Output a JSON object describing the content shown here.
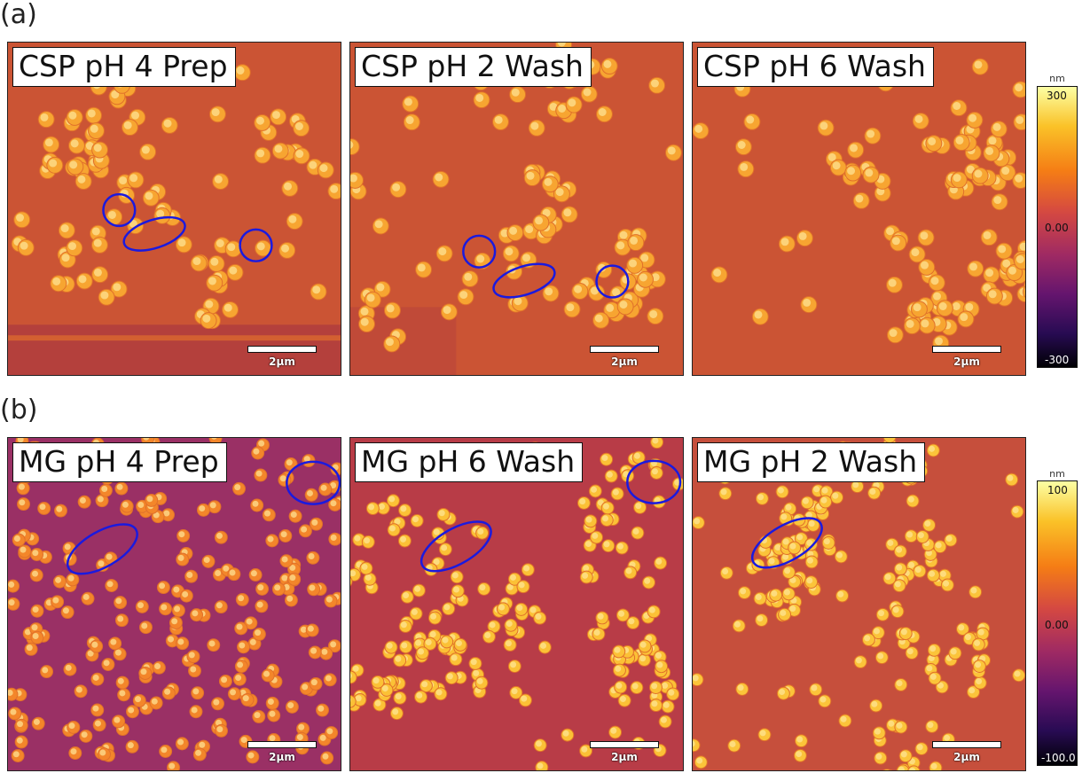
{
  "rows": [
    {
      "label": "(a)",
      "panels": [
        {
          "title": "CSP pH 4 Prep",
          "scalebar": "2μm"
        },
        {
          "title": "CSP pH 2 Wash",
          "scalebar": "2μm"
        },
        {
          "title": "CSP pH 6 Wash",
          "scalebar": "2μm"
        }
      ],
      "colorbar": {
        "unit": "nm",
        "max": "300",
        "mid": "0.00",
        "min": "-300"
      }
    },
    {
      "label": "(b)",
      "panels": [
        {
          "title": "MG pH 4 Prep",
          "scalebar": "2μm"
        },
        {
          "title": "MG pH 6 Wash",
          "scalebar": "2μm"
        },
        {
          "title": "MG pH 2 Wash",
          "scalebar": "2μm"
        }
      ],
      "colorbar": {
        "unit": "nm",
        "max": "100",
        "mid": "0.00",
        "min": "-100.0"
      }
    }
  ],
  "colors": {
    "colormap": [
      "#000004",
      "#280b53",
      "#65156e",
      "#9f2a63",
      "#d44842",
      "#f57d15",
      "#fac228",
      "#fcffa4"
    ],
    "annotation_circle": "#1a1adf"
  }
}
